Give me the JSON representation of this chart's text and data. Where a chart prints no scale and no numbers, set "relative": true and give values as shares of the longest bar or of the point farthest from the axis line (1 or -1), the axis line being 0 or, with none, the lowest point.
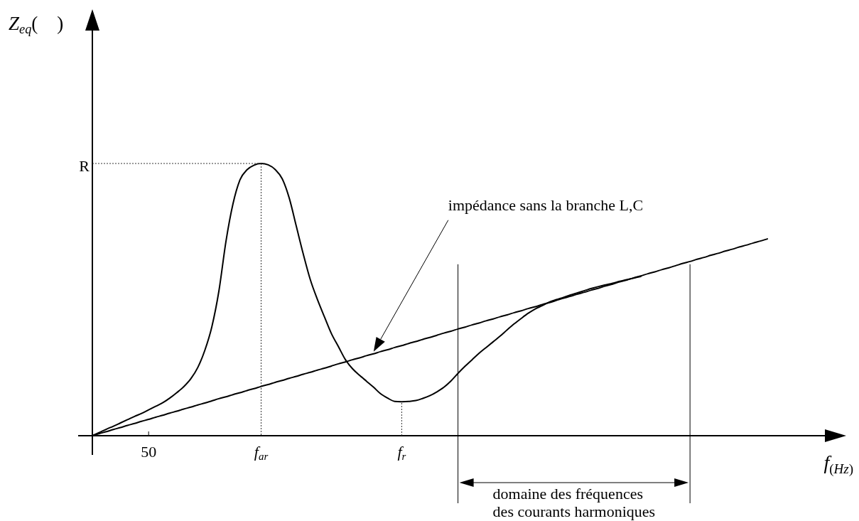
{
  "chart_data": {
    "type": "line",
    "xlabel": "f$_{(Hz)}$",
    "relative": true,
    "categories": [
      null,
      null,
      null,
      null,
      null,
      null,
      null,
      null,
      "50",
      null,
      null,
      null,
      null,
      null,
      null,
      null,
      null,
      null,
      null,
      null,
      null,
      null,
      null,
      null,
      "f$_{ar}$",
      null,
      null,
      null,
      null,
      null,
      null,
      null,
      null,
      null,
      null,
      null,
      null,
      null,
      null,
      null,
      null,
      null,
      null,
      null,
      "f$_{r}$",
      null,
      null,
      null,
      null,
      null,
      null,
      null,
      null,
      null,
      null,
      null,
      null,
      null,
      null,
      null,
      null,
      null,
      null,
      null,
      null,
      null,
      null,
      null,
      null,
      null,
      null,
      null,
      null,
      null,
      null,
      null,
      null,
      null,
      null,
      null,
      null,
      null,
      null,
      null,
      null,
      null,
      null,
      null,
      null,
      null,
      null,
      null,
      null,
      null,
      null,
      null,
      null
    ],
    "series": [
      {
        "color": "#000000",
        "values": [
          0,
          0.012,
          0.024,
          0.035,
          0.047,
          0.059,
          0.071,
          0.082,
          0.095,
          0.108,
          0.121,
          0.138,
          0.158,
          0.18,
          0.209,
          0.251,
          0.314,
          0.401,
          0.532,
          0.714,
          0.852,
          0.94,
          0.977,
          0.994,
          1,
          0.995,
          0.978,
          0.944,
          0.873,
          0.77,
          0.667,
          0.573,
          0.501,
          0.437,
          0.375,
          0.327,
          0.279,
          0.246,
          0.222,
          0.2,
          0.178,
          0.154,
          0.138,
          0.126,
          0.125,
          0.126,
          0.129,
          0.137,
          0.147,
          0.161,
          0.178,
          0.201,
          0.229,
          0.255,
          0.279,
          0.303,
          0.324,
          0.345,
          0.366,
          0.389,
          0.411,
          0.431,
          0.45,
          0.466,
          0.478,
          0.491,
          0.5,
          0.508,
          0.517,
          0.525,
          0.533,
          0.541,
          0.548,
          0.554,
          0.56,
          0.567,
          0.573,
          0.579,
          0.585,
          null,
          null,
          null,
          null,
          null,
          null,
          null,
          null,
          null,
          null,
          null,
          null,
          null,
          null,
          null,
          null,
          null,
          null
        ]
      },
      {
        "name": "impédance sans la branche L,C",
        "color": "#000000",
        "values": [
          0,
          0.008,
          0.015,
          0.023,
          0.03,
          0.038,
          0.045,
          0.053,
          0.06,
          0.068,
          0.075,
          0.083,
          0.09,
          0.098,
          0.105,
          0.113,
          0.12,
          0.128,
          0.136,
          0.143,
          0.151,
          0.158,
          0.166,
          0.173,
          0.181,
          0.188,
          0.196,
          0.203,
          0.211,
          0.218,
          0.226,
          0.233,
          0.241,
          0.248,
          0.256,
          0.264,
          0.271,
          0.279,
          0.286,
          0.294,
          0.301,
          0.309,
          0.316,
          0.324,
          0.331,
          0.339,
          0.346,
          0.354,
          0.361,
          0.369,
          0.377,
          0.384,
          0.392,
          0.399,
          0.407,
          0.414,
          0.422,
          0.429,
          0.437,
          0.444,
          0.452,
          0.459,
          0.467,
          0.474,
          0.482,
          0.489,
          0.497,
          0.505,
          0.512,
          0.52,
          0.527,
          0.535,
          0.542,
          0.55,
          0.557,
          0.565,
          0.572,
          0.58,
          0.587,
          0.595,
          0.602,
          0.61,
          0.617,
          0.625,
          0.633,
          0.64,
          0.648,
          0.655,
          0.663,
          0.67,
          0.678,
          0.685,
          0.693,
          0.7,
          0.708,
          0.715,
          0.723
        ]
      }
    ],
    "annotations": [
      {
        "text": "R",
        "x": "f$_{ar}$",
        "y": 1
      },
      "Z$_{eq}$(    )",
      "domaine des fréquences\ndes courants harmoniques"
    ],
    "ref_lines": [
      {
        "axis": "x",
        "value": "f$_{r}$",
        "line_style": "dotted"
      }
    ]
  }
}
